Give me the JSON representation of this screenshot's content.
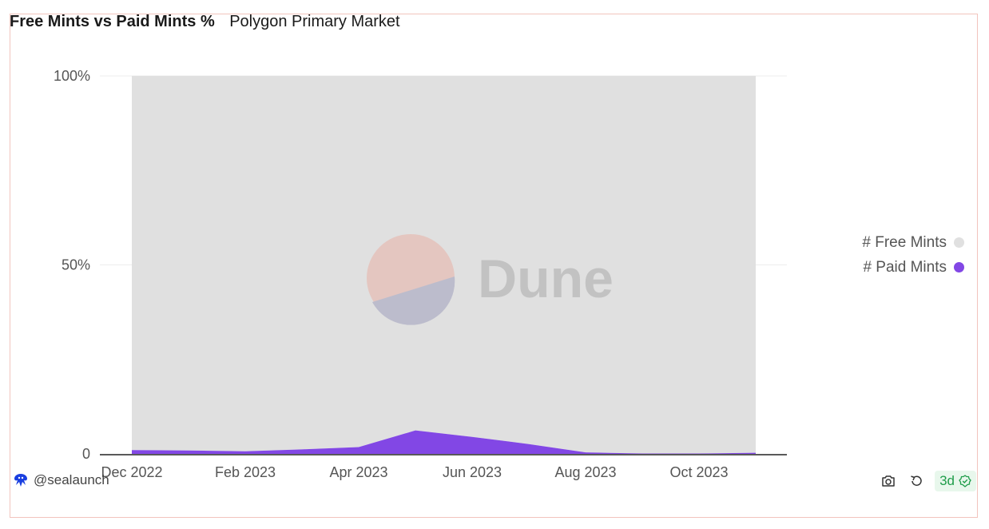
{
  "header": {
    "title": "Free Mints vs Paid Mints %",
    "subtitle": "Polygon Primary Market"
  },
  "chart_data": {
    "type": "area",
    "stacked": true,
    "normalized_percent": true,
    "x": [
      "2022-12",
      "2023-01",
      "2023-02",
      "2023-03",
      "2023-04",
      "2023-05",
      "2023-06",
      "2023-07",
      "2023-08",
      "2023-09",
      "2023-10",
      "2023-11"
    ],
    "series": [
      {
        "name": "# Free Mints",
        "color": "#e0e0e0",
        "values": [
          99.0,
          99.1,
          99.3,
          98.8,
          98.2,
          93.8,
          95.5,
          97.4,
          99.6,
          99.9,
          99.9,
          99.7
        ]
      },
      {
        "name": "# Paid Mints",
        "color": "#8247e5",
        "values": [
          1.0,
          0.9,
          0.7,
          1.2,
          1.8,
          6.2,
          4.5,
          2.6,
          0.4,
          0.1,
          0.1,
          0.3
        ]
      }
    ],
    "x_ticks": [
      "Dec 2022",
      "Feb 2023",
      "Apr 2023",
      "Jun 2023",
      "Aug 2023",
      "Oct 2023"
    ],
    "y_ticks": [
      "0",
      "50%",
      "100%"
    ],
    "ylim": [
      0,
      100
    ],
    "legend": "right",
    "grid": true,
    "watermark": "Dune"
  },
  "footer": {
    "author": "@sealaunch",
    "age_badge": "3d"
  }
}
